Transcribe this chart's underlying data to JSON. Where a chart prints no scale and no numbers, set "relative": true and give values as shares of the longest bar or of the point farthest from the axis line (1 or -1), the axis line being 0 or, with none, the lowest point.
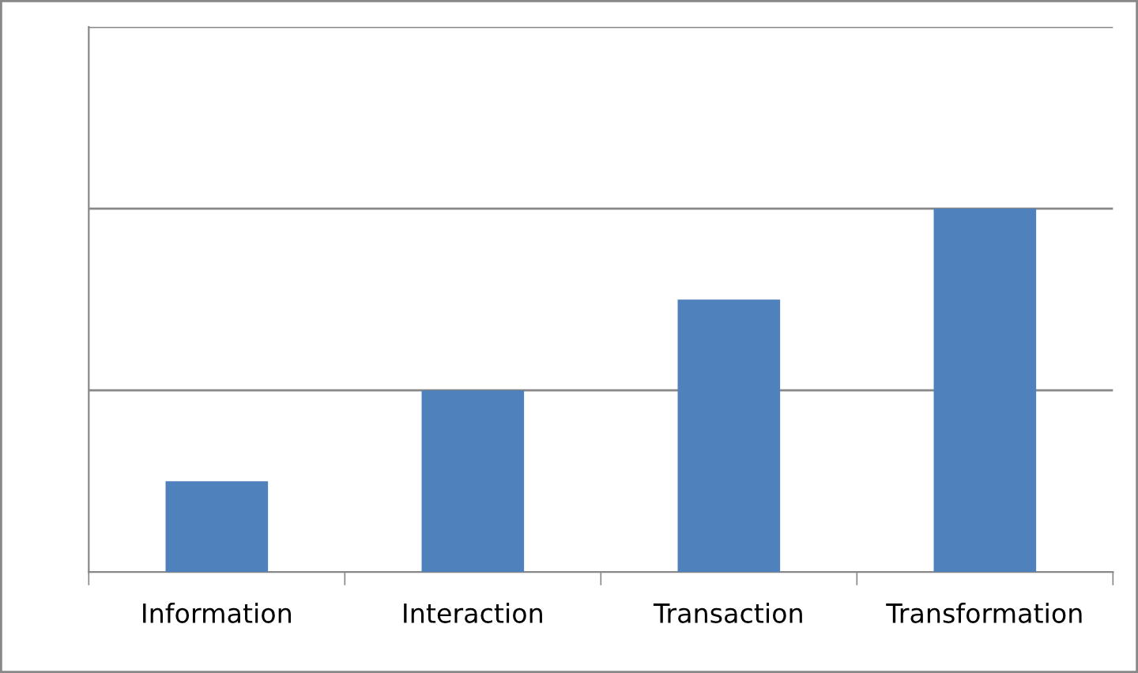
{
  "chart_data": {
    "type": "bar",
    "relative": true,
    "categories": [
      "Information",
      "Interaction",
      "Transaction",
      "Transformation"
    ],
    "values": [
      0.25,
      0.5,
      0.75,
      1
    ],
    "color": "#4f81bd",
    "ref_lines": [
      {
        "axis": "y",
        "value": 0.5,
        "color": "#888888"
      },
      {
        "axis": "y",
        "value": 1,
        "color": "#888888"
      },
      {
        "axis": "y",
        "value": 1.5,
        "color": "#888888"
      }
    ]
  }
}
